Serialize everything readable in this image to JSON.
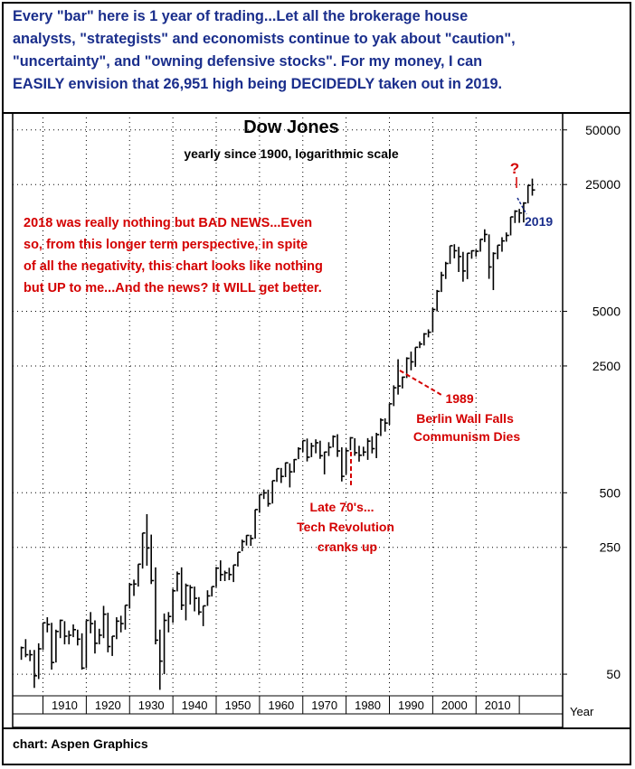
{
  "header": {
    "lines": [
      "Every \"bar\" here is 1 year of trading...Let all the brokerage house",
      "analysts, \"strategists\" and economists continue to yak about \"caution\",",
      "\"uncertainty\", and \"owning defensive stocks\". For my money, I can",
      "EASILY envision that 26,951 high being DECIDEDLY taken out in 2019."
    ]
  },
  "footer": {
    "credit": "chart: Aspen Graphics"
  },
  "colors": {
    "header_text": "#1a2e8c",
    "annotation_red": "#d40000",
    "annotation_blue": "#1a2e8c",
    "bars": "#000000"
  },
  "chart_data": {
    "type": "ohlc",
    "title": "Dow Jones",
    "subtitle": "yearly since 1900, logarithmic scale",
    "xlabel": "Year",
    "y_scale": "log",
    "ylim": [
      38,
      62000
    ],
    "xlim": [
      1898,
      2025
    ],
    "y_ticks": [
      50,
      250,
      500,
      2500,
      5000,
      25000,
      50000
    ],
    "x_ticks": [
      1910,
      1920,
      1930,
      1940,
      1950,
      1960,
      1970,
      1980,
      1990,
      2000,
      2010
    ],
    "grid": true,
    "bars": [
      [
        1900,
        71,
        60,
        70
      ],
      [
        1901,
        78,
        62,
        64
      ],
      [
        1902,
        68,
        59,
        64
      ],
      [
        1903,
        68,
        42,
        49
      ],
      [
        1904,
        74,
        47,
        69
      ],
      [
        1905,
        96,
        68,
        96
      ],
      [
        1906,
        103,
        85,
        94
      ],
      [
        1907,
        96,
        53,
        58
      ],
      [
        1908,
        88,
        58,
        86
      ],
      [
        1909,
        100,
        79,
        99
      ],
      [
        1910,
        98,
        73,
        81
      ],
      [
        1911,
        87,
        73,
        82
      ],
      [
        1912,
        94,
        80,
        88
      ],
      [
        1913,
        88,
        72,
        78
      ],
      [
        1914,
        84,
        53,
        54
      ],
      [
        1915,
        99,
        54,
        99
      ],
      [
        1916,
        110,
        84,
        95
      ],
      [
        1917,
        99,
        65,
        74
      ],
      [
        1918,
        89,
        73,
        82
      ],
      [
        1919,
        119,
        79,
        107
      ],
      [
        1920,
        109,
        66,
        71
      ],
      [
        1921,
        81,
        63,
        81
      ],
      [
        1922,
        103,
        78,
        98
      ],
      [
        1923,
        105,
        85,
        95
      ],
      [
        1924,
        120,
        88,
        120
      ],
      [
        1925,
        159,
        115,
        156
      ],
      [
        1926,
        166,
        135,
        157
      ],
      [
        1927,
        202,
        152,
        202
      ],
      [
        1928,
        300,
        191,
        300
      ],
      [
        1929,
        381,
        198,
        248
      ],
      [
        1930,
        294,
        157,
        164
      ],
      [
        1931,
        194,
        73,
        77
      ],
      [
        1932,
        88,
        41,
        59
      ],
      [
        1933,
        108,
        50,
        99
      ],
      [
        1934,
        110,
        85,
        104
      ],
      [
        1935,
        148,
        96,
        144
      ],
      [
        1936,
        184,
        143,
        179
      ],
      [
        1937,
        194,
        113,
        120
      ],
      [
        1938,
        158,
        99,
        154
      ],
      [
        1939,
        155,
        121,
        150
      ],
      [
        1940,
        152,
        111,
        131
      ],
      [
        1941,
        133,
        106,
        110
      ],
      [
        1942,
        119,
        92,
        119
      ],
      [
        1943,
        145,
        119,
        135
      ],
      [
        1944,
        152,
        134,
        152
      ],
      [
        1945,
        195,
        151,
        192
      ],
      [
        1946,
        212,
        163,
        177
      ],
      [
        1947,
        186,
        163,
        181
      ],
      [
        1948,
        193,
        165,
        177
      ],
      [
        1949,
        200,
        161,
        200
      ],
      [
        1950,
        235,
        196,
        235
      ],
      [
        1951,
        276,
        238,
        269
      ],
      [
        1952,
        292,
        256,
        291
      ],
      [
        1953,
        293,
        255,
        280
      ],
      [
        1954,
        404,
        279,
        404
      ],
      [
        1955,
        488,
        388,
        488
      ],
      [
        1956,
        521,
        462,
        499
      ],
      [
        1957,
        520,
        419,
        435
      ],
      [
        1958,
        583,
        436,
        583
      ],
      [
        1959,
        679,
        574,
        679
      ],
      [
        1960,
        685,
        566,
        615
      ],
      [
        1961,
        734,
        610,
        731
      ],
      [
        1962,
        726,
        535,
        652
      ],
      [
        1963,
        767,
        646,
        762
      ],
      [
        1964,
        891,
        766,
        874
      ],
      [
        1965,
        969,
        840,
        969
      ],
      [
        1966,
        995,
        744,
        785
      ],
      [
        1967,
        943,
        786,
        905
      ],
      [
        1968,
        985,
        825,
        943
      ],
      [
        1969,
        968,
        769,
        800
      ],
      [
        1970,
        842,
        631,
        838
      ],
      [
        1971,
        950,
        797,
        890
      ],
      [
        1972,
        1036,
        889,
        1020
      ],
      [
        1973,
        1051,
        788,
        850
      ],
      [
        1974,
        891,
        577,
        616
      ],
      [
        1975,
        881,
        632,
        852
      ],
      [
        1976,
        1014,
        858,
        1004
      ],
      [
        1977,
        999,
        800,
        831
      ],
      [
        1978,
        907,
        742,
        805
      ],
      [
        1979,
        897,
        796,
        838
      ],
      [
        1980,
        1000,
        759,
        963
      ],
      [
        1981,
        1024,
        824,
        875
      ],
      [
        1982,
        1070,
        776,
        1046
      ],
      [
        1983,
        1287,
        1027,
        1258
      ],
      [
        1984,
        1286,
        1086,
        1211
      ],
      [
        1985,
        1553,
        1184,
        1546
      ],
      [
        1986,
        1955,
        1502,
        1895
      ],
      [
        1987,
        2722,
        1738,
        1938
      ],
      [
        1988,
        2183,
        1879,
        2168
      ],
      [
        1989,
        2791,
        2144,
        2753
      ],
      [
        1990,
        2999,
        2365,
        2633
      ],
      [
        1991,
        3168,
        2470,
        3168
      ],
      [
        1992,
        3413,
        3136,
        3301
      ],
      [
        1993,
        3794,
        3241,
        3754
      ],
      [
        1994,
        3978,
        3593,
        3834
      ],
      [
        1995,
        5216,
        3832,
        5117
      ],
      [
        1996,
        6560,
        5000,
        6448
      ],
      [
        1997,
        8259,
        6391,
        7908
      ],
      [
        1998,
        9374,
        7539,
        9181
      ],
      [
        1999,
        11497,
        9120,
        11497
      ],
      [
        2000,
        11723,
        9796,
        10787
      ],
      [
        2001,
        11337,
        8236,
        10021
      ],
      [
        2002,
        10635,
        7286,
        8342
      ],
      [
        2003,
        10453,
        7524,
        10453
      ],
      [
        2004,
        10854,
        9750,
        10783
      ],
      [
        2005,
        10940,
        10012,
        10718
      ],
      [
        2006,
        12510,
        10661,
        12463
      ],
      [
        2007,
        14165,
        12050,
        13265
      ],
      [
        2008,
        13279,
        7552,
        8776
      ],
      [
        2009,
        10580,
        6547,
        10428
      ],
      [
        2010,
        11585,
        9686,
        11578
      ],
      [
        2011,
        12810,
        10655,
        12218
      ],
      [
        2012,
        13610,
        12101,
        13104
      ],
      [
        2013,
        16577,
        13104,
        16577
      ],
      [
        2014,
        18053,
        15340,
        17823
      ],
      [
        2015,
        18351,
        15370,
        17425
      ],
      [
        2016,
        19975,
        15450,
        19763
      ],
      [
        2017,
        24876,
        19677,
        24719
      ],
      [
        2018,
        26951,
        21713,
        23327
      ]
    ],
    "annotations": {
      "question": "?",
      "year_2019": "2019",
      "bad_news": [
        "2018 was really nothing but BAD NEWS...Even",
        "so, from this longer term perspective, in spite",
        "of all the negativity, this chart looks like nothing",
        "but UP to me...And the news? It WILL get better."
      ],
      "berlin": [
        "1989",
        "Berlin Wall Falls",
        "Communism Dies"
      ],
      "tech": [
        "Late 70's...",
        "Tech Revolution",
        "cranks up"
      ]
    }
  }
}
